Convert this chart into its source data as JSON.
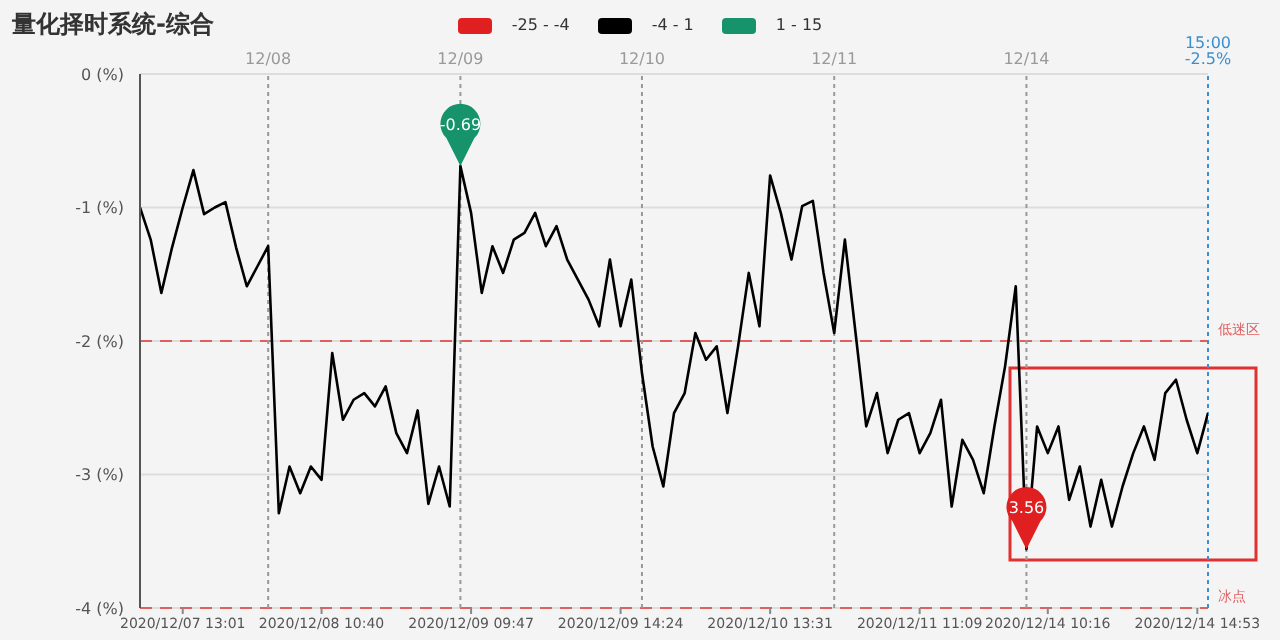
{
  "chart_data": {
    "type": "line",
    "title": "量化择时系统-综合",
    "categories": [
      null,
      null,
      null,
      null,
      "2020/12/07 13:01",
      null,
      null,
      null,
      null,
      null,
      null,
      null,
      null,
      null,
      null,
      null,
      null,
      "2020/12/08 10:40",
      null,
      null,
      null,
      null,
      null,
      null,
      null,
      null,
      null,
      null,
      null,
      null,
      null,
      "2020/12/09 09:47",
      null,
      null,
      null,
      null,
      null,
      null,
      null,
      null,
      null,
      null,
      null,
      null,
      null,
      "2020/12/09 14:24",
      null,
      null,
      null,
      null,
      null,
      null,
      null,
      null,
      null,
      null,
      null,
      null,
      null,
      "2020/12/10 13:31",
      null,
      null,
      null,
      null,
      null,
      null,
      null,
      null,
      null,
      null,
      null,
      null,
      null,
      "2020/12/11 11:09",
      null,
      null,
      null,
      null,
      null,
      null,
      null,
      null,
      null,
      null,
      null,
      "2020/12/14 10:16",
      null,
      null,
      null,
      null,
      null,
      null,
      null,
      null,
      null,
      null,
      null,
      null,
      null,
      "2020/12/14 14:53",
      null
    ],
    "series": [
      {
        "name": "-25 - -4",
        "color": "#e02020",
        "values": [
          null,
          null,
          null,
          null,
          null,
          null,
          null,
          null,
          null,
          null,
          null,
          null,
          null,
          null,
          null,
          null,
          null,
          null,
          null,
          null,
          null,
          null,
          null,
          null,
          null,
          null,
          null,
          null,
          null,
          null,
          null,
          null,
          null,
          null,
          null,
          null,
          null,
          null,
          null,
          null,
          null,
          null,
          null,
          null,
          null,
          null,
          null,
          null,
          null,
          null,
          null,
          null,
          null,
          null,
          null,
          null,
          null,
          null,
          null,
          null,
          null,
          null,
          null,
          null,
          null,
          null,
          null,
          null,
          null,
          null,
          null,
          null,
          null,
          null,
          null,
          null,
          null,
          null,
          null,
          null,
          null,
          null,
          null,
          null,
          null,
          null,
          null,
          null,
          null,
          null,
          null,
          null,
          null,
          null,
          null,
          null,
          null,
          null,
          null,
          null,
          null
        ]
      },
      {
        "name": "-4 - 1",
        "color": "#000000",
        "values": [
          -1.0,
          -1.24,
          -1.64,
          -1.3,
          -1.0,
          -0.72,
          -1.05,
          -1.0,
          -0.96,
          -1.3,
          -1.59,
          -1.44,
          -1.29,
          -3.29,
          -2.94,
          -3.14,
          -2.94,
          -3.04,
          -2.09,
          -2.59,
          -2.44,
          -2.39,
          -2.49,
          -2.34,
          -2.69,
          -2.84,
          -2.52,
          -3.22,
          -2.94,
          -3.24,
          -0.69,
          -1.04,
          -1.64,
          -1.29,
          -1.49,
          -1.24,
          -1.19,
          -1.04,
          -1.29,
          -1.14,
          -1.39,
          -1.54,
          -1.69,
          -1.89,
          -1.39,
          -1.89,
          -1.54,
          -2.24,
          -2.79,
          -3.09,
          -2.54,
          -2.39,
          -1.94,
          -2.14,
          -2.04,
          -2.54,
          -2.04,
          -1.49,
          -1.89,
          -0.76,
          -1.04,
          -1.39,
          -0.99,
          -0.95,
          -1.49,
          -1.94,
          -1.24,
          -1.94,
          -2.64,
          -2.39,
          -2.84,
          -2.59,
          -2.54,
          -2.84,
          -2.69,
          -2.44,
          -3.24,
          -2.74,
          -2.89,
          -3.14,
          -2.64,
          -2.19,
          -1.59,
          -3.56,
          -2.64,
          -2.84,
          -2.64,
          -3.19,
          -2.94,
          -3.39,
          -3.04,
          -3.39,
          -3.09,
          -2.84,
          -2.64,
          -2.89,
          -2.39,
          -2.29,
          -2.59,
          -2.84,
          -2.54
        ]
      },
      {
        "name": "1 - 15",
        "color": "#16936a",
        "values": [
          null,
          null,
          null,
          null,
          null,
          null,
          null,
          null,
          null,
          null,
          null,
          null,
          null,
          null,
          null,
          null,
          null,
          null,
          null,
          null,
          null,
          null,
          null,
          null,
          null,
          null,
          null,
          null,
          null,
          null,
          null,
          null,
          null,
          null,
          null,
          null,
          null,
          null,
          null,
          null,
          null,
          null,
          null,
          null,
          null,
          null,
          null,
          null,
          null,
          null,
          null,
          null,
          null,
          null,
          null,
          null,
          null,
          null,
          null,
          null,
          null,
          null,
          null,
          null,
          null,
          null,
          null,
          null,
          null,
          null,
          null,
          null,
          null,
          null,
          null,
          null,
          null,
          null,
          null,
          null,
          null,
          null,
          null,
          null,
          null,
          null,
          null,
          null,
          null,
          null,
          null,
          null,
          null,
          null,
          null,
          null,
          null,
          null,
          null,
          null,
          null
        ]
      }
    ],
    "ylim": [
      -4,
      0
    ],
    "yticks": [
      {
        "value": -4,
        "label": "-4 (%)"
      },
      {
        "value": -3,
        "label": "-3 (%)"
      },
      {
        "value": -2,
        "label": "-2 (%)"
      },
      {
        "value": -1,
        "label": "-1 (%)"
      },
      {
        "value": 0,
        "label": "0 (%)"
      }
    ],
    "grid": true,
    "legend": "top",
    "marker": "none",
    "line_style": "solid",
    "ref_lines": [
      {
        "axis": "y",
        "value": -2,
        "label": "低迷区",
        "color": "#e06060",
        "line_style": "dashed"
      },
      {
        "axis": "y",
        "value": -4,
        "label": "冰点",
        "color": "#e06060",
        "line_style": "dashed"
      }
    ],
    "annotations": [
      "12/08",
      "12/09",
      "12/10",
      "12/11",
      "12/14",
      "15:00\n-2.5%",
      {
        "text": "-0.69",
        "y": -0.69
      },
      {
        "text": "3.56",
        "y": -3.56
      }
    ]
  }
}
